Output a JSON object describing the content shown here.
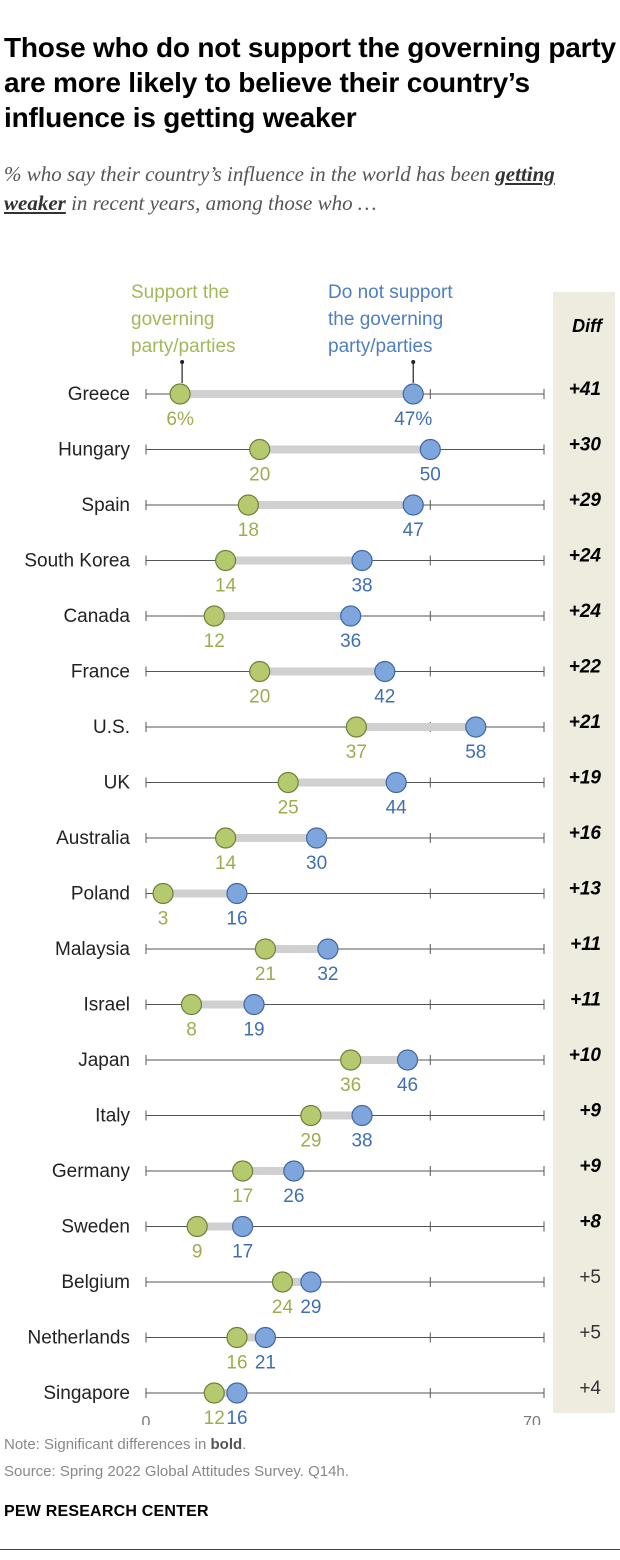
{
  "title": "Those who do not support the governing party are more likely to believe their country’s influence is getting weaker",
  "subtitle": {
    "before": "% who say their country’s influence in the world has been ",
    "emphasis": "getting weaker",
    "after": " in recent years, among those who …"
  },
  "note": {
    "prefix": "Note: Significant differences in ",
    "bold": "bold",
    "suffix": "."
  },
  "source": "Source: Spring 2022 Global Attitudes Survey. Q14h.",
  "brand": "PEW RESEARCH CENTER",
  "chart_data": {
    "type": "dot-plot",
    "x_range": [
      0,
      70
    ],
    "x_tick_labels": [
      "0",
      "70"
    ],
    "diff_header": "Diff",
    "colors": {
      "support": "#b5c96f",
      "not_support": "#7ea6dc",
      "connector": "#d0d0d0",
      "diff_panel": "#edecdf"
    },
    "legend": {
      "support": [
        "Support the",
        "governing",
        "party/parties"
      ],
      "not_support": [
        "Do not support",
        "the governing",
        "party/parties"
      ]
    },
    "series": [
      {
        "name": "Support the governing party/parties",
        "key": "support",
        "values": [
          6,
          20,
          18,
          14,
          12,
          20,
          37,
          25,
          14,
          3,
          21,
          8,
          36,
          29,
          17,
          9,
          24,
          16,
          12
        ]
      },
      {
        "name": "Do not support the governing party/parties",
        "key": "not_support",
        "values": [
          47,
          50,
          47,
          38,
          36,
          42,
          58,
          44,
          30,
          16,
          32,
          19,
          46,
          38,
          26,
          17,
          29,
          21,
          16
        ]
      }
    ],
    "countries": [
      "Greece",
      "Hungary",
      "Spain",
      "South Korea",
      "Canada",
      "France",
      "U.S.",
      "UK",
      "Australia",
      "Poland",
      "Malaysia",
      "Israel",
      "Japan",
      "Italy",
      "Germany",
      "Sweden",
      "Belgium",
      "Netherlands",
      "Singapore"
    ],
    "support_labels": [
      "6%",
      "20",
      "18",
      "14",
      "12",
      "20",
      "37",
      "25",
      "14",
      "3",
      "21",
      "8",
      "36",
      "29",
      "17",
      "9",
      "24",
      "16",
      "12"
    ],
    "not_support_labels": [
      "47%",
      "50",
      "47",
      "38",
      "36",
      "42",
      "58",
      "44",
      "30",
      "16",
      "32",
      "19",
      "46",
      "38",
      "26",
      "17",
      "29",
      "21",
      "16"
    ],
    "diffs": [
      "+41",
      "+30",
      "+29",
      "+24",
      "+24",
      "+22",
      "+21",
      "+19",
      "+16",
      "+13",
      "+11",
      "+11",
      "+10",
      "+9",
      "+9",
      "+8",
      "+5",
      "+5",
      "+4"
    ],
    "significant": [
      true,
      true,
      true,
      true,
      true,
      true,
      true,
      true,
      true,
      true,
      true,
      true,
      true,
      true,
      true,
      true,
      false,
      false,
      false
    ]
  }
}
